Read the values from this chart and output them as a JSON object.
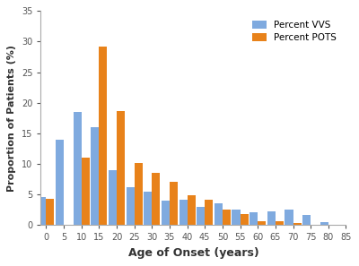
{
  "age_bins": [
    0,
    5,
    10,
    15,
    20,
    25,
    30,
    35,
    40,
    45,
    50,
    55,
    60,
    65,
    70,
    75,
    80
  ],
  "vvs": [
    4.5,
    14.0,
    18.5,
    16.0,
    9.0,
    6.2,
    5.4,
    4.0,
    4.1,
    3.0,
    3.5,
    2.5,
    2.1,
    2.2,
    2.5,
    1.6,
    0.5
  ],
  "pots": [
    4.2,
    0.0,
    11.0,
    29.2,
    18.6,
    10.2,
    8.5,
    7.0,
    4.8,
    4.1,
    2.5,
    1.7,
    0.6,
    0.6,
    0.3,
    0.0,
    0.0
  ],
  "vvs_color": "#7faadf",
  "pots_color": "#e8821a",
  "xlabel": "Age of Onset (years)",
  "ylabel": "Proportion of Patients (%)",
  "xlim": [
    -1.5,
    85
  ],
  "ylim": [
    0,
    35
  ],
  "yticks": [
    0,
    5,
    10,
    15,
    20,
    25,
    30,
    35
  ],
  "xticks": [
    0,
    5,
    10,
    15,
    20,
    25,
    30,
    35,
    40,
    45,
    50,
    55,
    60,
    65,
    70,
    75,
    80,
    85
  ],
  "legend_labels": [
    "Percent VVS",
    "Percent POTS"
  ],
  "background_color": "#ffffff"
}
